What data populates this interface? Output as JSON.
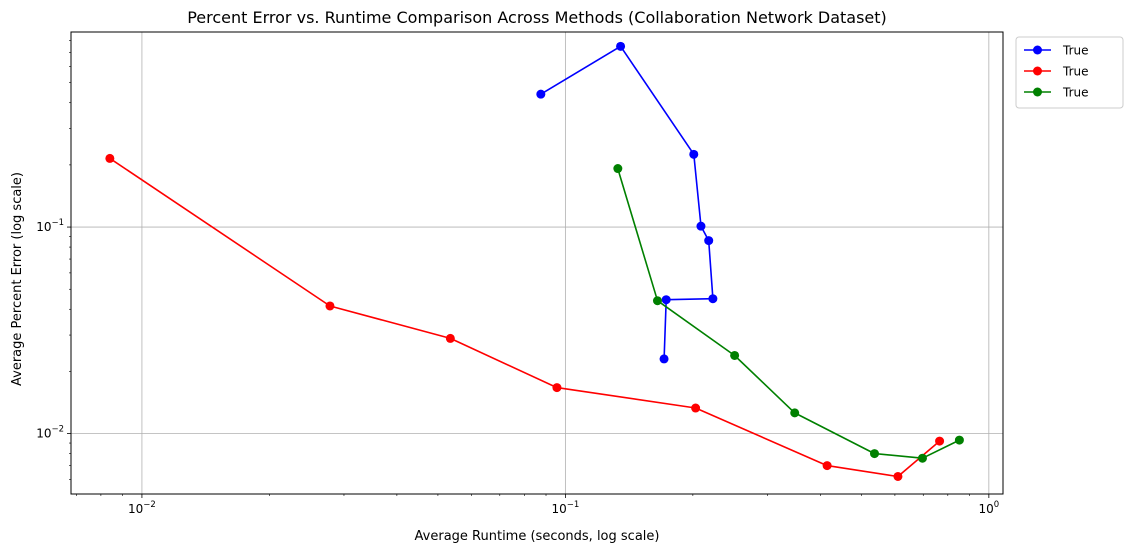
{
  "chart_data": {
    "type": "line",
    "title": "Percent Error vs. Runtime Comparison Across Methods (Collaboration Network Dataset)",
    "xlabel": "Average Runtime (seconds, log scale)",
    "ylabel": "Average Percent Error (log scale)",
    "xscale": "log",
    "yscale": "log",
    "xlim": [
      0.0068,
      1.08
    ],
    "ylim": [
      0.0051,
      0.88
    ],
    "grid": true,
    "legend_position": "outside-top-right",
    "x_ticks": [
      {
        "value": 0.01,
        "base": "10",
        "exp": "−2"
      },
      {
        "value": 0.1,
        "base": "10",
        "exp": "−1"
      },
      {
        "value": 1,
        "base": "10",
        "exp": "0"
      }
    ],
    "y_ticks": [
      {
        "value": 0.01,
        "base": "10",
        "exp": "−2"
      },
      {
        "value": 0.1,
        "base": "10",
        "exp": "−1"
      }
    ],
    "series": [
      {
        "name": "True",
        "color": "#0000ff",
        "points": [
          [
            0.0875,
            0.44
          ],
          [
            0.135,
            0.75
          ],
          [
            0.201,
            0.225
          ],
          [
            0.209,
            0.101
          ],
          [
            0.218,
            0.086
          ],
          [
            0.223,
            0.045
          ],
          [
            0.173,
            0.0445
          ],
          [
            0.171,
            0.023
          ]
        ]
      },
      {
        "name": "True",
        "color": "#ff0000",
        "points": [
          [
            0.0084,
            0.215
          ],
          [
            0.0278,
            0.0415
          ],
          [
            0.0535,
            0.0289
          ],
          [
            0.0955,
            0.0167
          ],
          [
            0.203,
            0.0133
          ],
          [
            0.415,
            0.007
          ],
          [
            0.61,
            0.0062
          ],
          [
            0.765,
            0.0092
          ]
        ]
      },
      {
        "name": "True",
        "color": "#008000",
        "points": [
          [
            0.133,
            0.192
          ],
          [
            0.165,
            0.044
          ],
          [
            0.251,
            0.0239
          ],
          [
            0.348,
            0.0126
          ],
          [
            0.537,
            0.008
          ],
          [
            0.697,
            0.0076
          ],
          [
            0.852,
            0.0093
          ]
        ]
      }
    ]
  }
}
